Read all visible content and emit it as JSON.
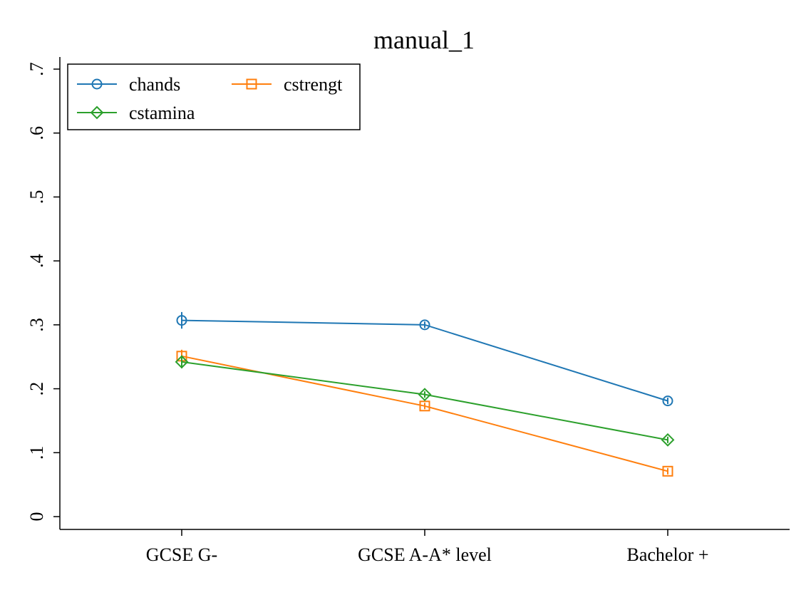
{
  "chart_data": {
    "type": "line",
    "title": "manual_1",
    "xlabel": "",
    "ylabel": "",
    "categories": [
      "GCSE G-",
      "GCSE A-A* level",
      "Bachelor +"
    ],
    "ylim": [
      0,
      0.7
    ],
    "yticks": [
      0,
      0.1,
      0.2,
      0.3,
      0.4,
      0.5,
      0.6,
      0.7
    ],
    "ytick_labels": [
      "0",
      ".1",
      ".2",
      ".3",
      ".4",
      ".5",
      ".6",
      ".7"
    ],
    "grid": false,
    "legend_position": "top-left",
    "series": [
      {
        "name": "chands",
        "color": "#1f77b4",
        "marker": "circle",
        "values": [
          0.307,
          0.3,
          0.181
        ],
        "ci": [
          [
            0.294,
            0.32
          ],
          [
            0.295,
            0.305
          ],
          [
            0.176,
            0.186
          ]
        ]
      },
      {
        "name": "cstrengt",
        "color": "#ff7f0e",
        "marker": "square",
        "values": [
          0.251,
          0.173,
          0.071
        ],
        "ci": [
          [
            0.241,
            0.261
          ],
          [
            0.168,
            0.178
          ],
          [
            0.066,
            0.076
          ]
        ]
      },
      {
        "name": "cstamina",
        "color": "#2ca02c",
        "marker": "diamond",
        "values": [
          0.242,
          0.191,
          0.12
        ],
        "ci": [
          [
            0.232,
            0.252
          ],
          [
            0.186,
            0.196
          ],
          [
            0.115,
            0.125
          ]
        ]
      }
    ]
  }
}
